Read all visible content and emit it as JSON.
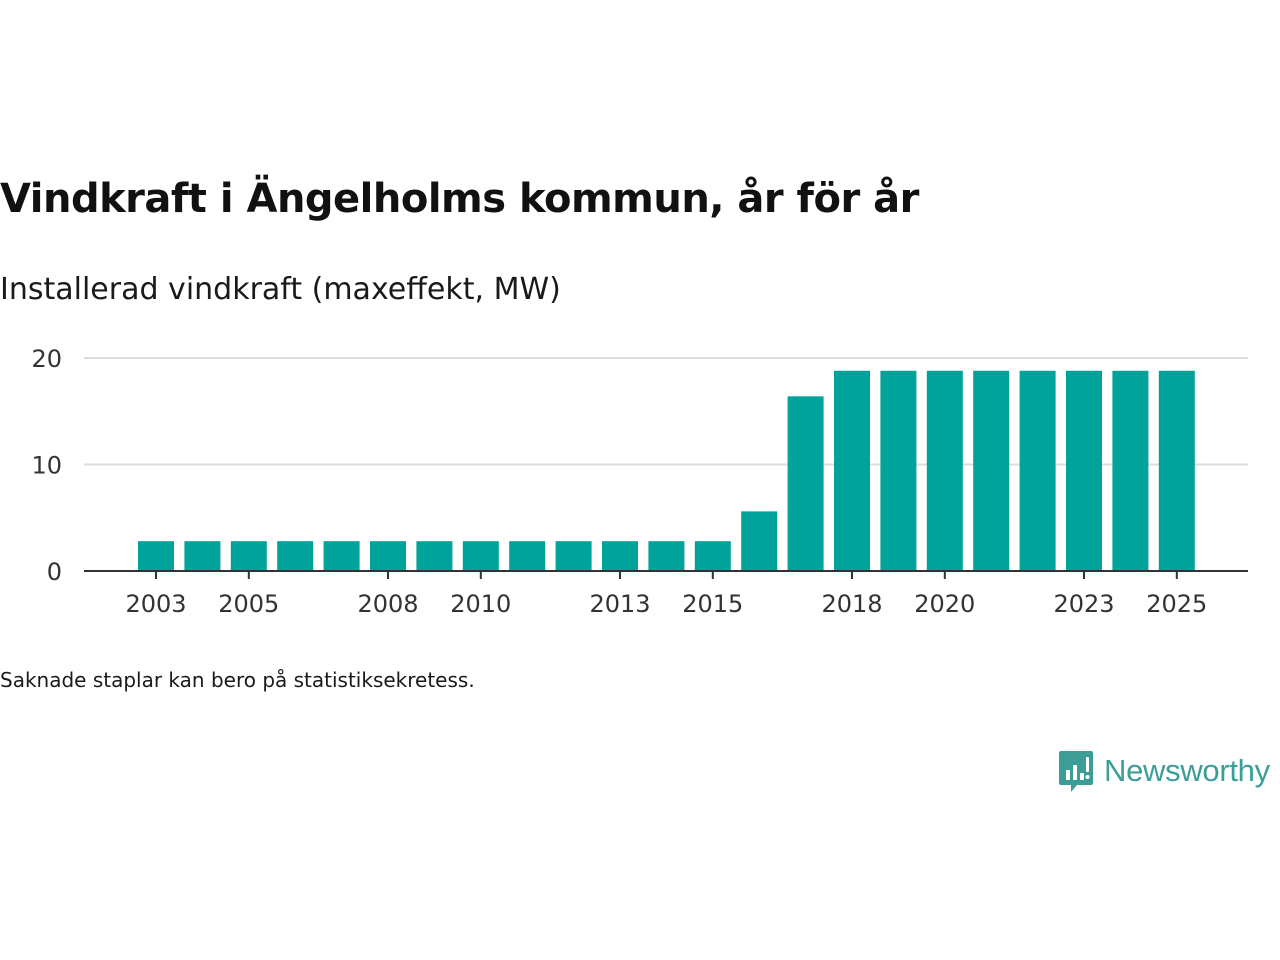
{
  "header": {
    "title": "Vindkraft i Ängelholms kommun, år för år",
    "subtitle": "Installerad vindkraft (maxeffekt, MW)"
  },
  "footnote": "Saknade staplar kan bero på statistiksekretess.",
  "brand": {
    "name": "Newsworthy",
    "logo_icon": "newsworthy-chart-bubble-icon",
    "color": "#3b9e97"
  },
  "colors": {
    "bar": "#00a39a",
    "grid": "#dcdcdc",
    "axis": "#333333"
  },
  "chart_data": {
    "type": "bar",
    "title": "Vindkraft i Ängelholms kommun, år för år",
    "ylabel": "Installerad vindkraft (maxeffekt, MW)",
    "xlabel": "",
    "categories": [
      "2003",
      "2004",
      "2005",
      "2006",
      "2007",
      "2008",
      "2009",
      "2010",
      "2011",
      "2012",
      "2013",
      "2014",
      "2015",
      "2016",
      "2017",
      "2018",
      "2019",
      "2020",
      "2021",
      "2022",
      "2023",
      "2024",
      "2025"
    ],
    "values": [
      2.8,
      2.8,
      2.8,
      2.8,
      2.8,
      2.8,
      2.8,
      2.8,
      2.8,
      2.8,
      2.8,
      2.8,
      2.8,
      5.6,
      16.4,
      18.8,
      18.8,
      18.8,
      18.8,
      18.8,
      18.8,
      18.8,
      18.8
    ],
    "ylim": [
      0,
      20
    ],
    "yticks": [
      0,
      10,
      20
    ],
    "xtick_labels": [
      "2003",
      "2005",
      "2008",
      "2010",
      "2013",
      "2015",
      "2018",
      "2020",
      "2023",
      "2025"
    ],
    "grid": true,
    "legend": "none"
  }
}
